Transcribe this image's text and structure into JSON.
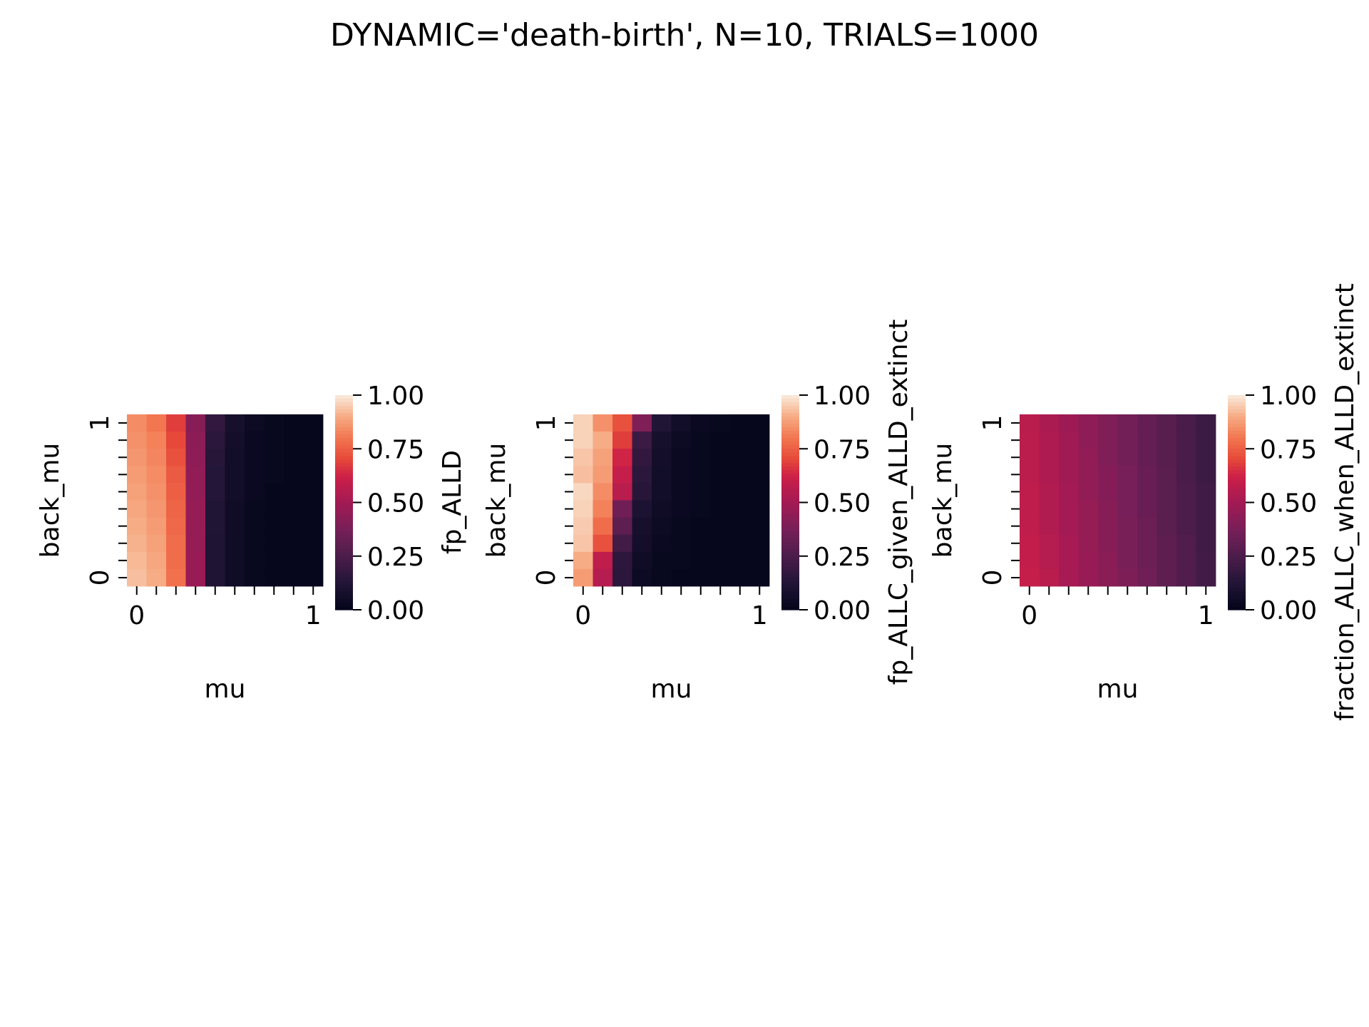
{
  "figure": {
    "title": "DYNAMIC='death-birth', N=10, TRIALS=1000"
  },
  "chart_data": [
    {
      "type": "heatmap",
      "xlabel": "mu",
      "ylabel": "back_mu",
      "x_ticklabels": [
        "0",
        "",
        "",
        "",
        "",
        "",
        "",
        "",
        "",
        "1"
      ],
      "y_ticklabels": [
        "1",
        "",
        "",
        "",
        "",
        "",
        "",
        "",
        "",
        "0"
      ],
      "colorbar_label": "fp_ALLD",
      "colorbar_ticks": [
        "0.00",
        "0.25",
        "0.50",
        "0.75",
        "1.00"
      ],
      "vmin": 0,
      "vmax": 1,
      "colormap": "rocket",
      "values": [
        [
          0.84,
          0.8,
          0.68,
          0.42,
          0.17,
          0.08,
          0.04,
          0.02,
          0.01,
          0.01
        ],
        [
          0.85,
          0.82,
          0.7,
          0.43,
          0.15,
          0.07,
          0.03,
          0.02,
          0.01,
          0.01
        ],
        [
          0.86,
          0.83,
          0.72,
          0.44,
          0.14,
          0.06,
          0.03,
          0.02,
          0.01,
          0.01
        ],
        [
          0.87,
          0.84,
          0.74,
          0.45,
          0.13,
          0.06,
          0.03,
          0.02,
          0.01,
          0.01
        ],
        [
          0.88,
          0.85,
          0.75,
          0.45,
          0.13,
          0.06,
          0.03,
          0.01,
          0.01,
          0.01
        ],
        [
          0.89,
          0.86,
          0.76,
          0.46,
          0.12,
          0.05,
          0.02,
          0.01,
          0.01,
          0.01
        ],
        [
          0.9,
          0.87,
          0.77,
          0.46,
          0.12,
          0.05,
          0.02,
          0.01,
          0.01,
          0.01
        ],
        [
          0.91,
          0.88,
          0.78,
          0.46,
          0.11,
          0.05,
          0.02,
          0.01,
          0.01,
          0.01
        ],
        [
          0.92,
          0.89,
          0.78,
          0.47,
          0.11,
          0.05,
          0.02,
          0.01,
          0.01,
          0.01
        ],
        [
          0.93,
          0.9,
          0.79,
          0.47,
          0.11,
          0.05,
          0.02,
          0.01,
          0.01,
          0.01
        ]
      ]
    },
    {
      "type": "heatmap",
      "xlabel": "mu",
      "ylabel": "back_mu",
      "x_ticklabels": [
        "0",
        "",
        "",
        "",
        "",
        "",
        "",
        "",
        "",
        "1"
      ],
      "y_ticklabels": [
        "1",
        "",
        "",
        "",
        "",
        "",
        "",
        "",
        "",
        "0"
      ],
      "colorbar_label": "fp_ALLC_given_ALLD_extinct",
      "colorbar_ticks": [
        "0.00",
        "0.25",
        "0.50",
        "0.75",
        "1.00"
      ],
      "vmin": 0,
      "vmax": 1,
      "colormap": "rocket",
      "values": [
        [
          0.96,
          0.85,
          0.72,
          0.4,
          0.12,
          0.06,
          0.03,
          0.02,
          0.01,
          0.01
        ],
        [
          0.96,
          0.9,
          0.68,
          0.2,
          0.08,
          0.04,
          0.02,
          0.01,
          0.01,
          0.01
        ],
        [
          0.94,
          0.88,
          0.63,
          0.17,
          0.07,
          0.03,
          0.02,
          0.01,
          0.01,
          0.01
        ],
        [
          0.93,
          0.87,
          0.6,
          0.15,
          0.06,
          0.03,
          0.02,
          0.01,
          0.01,
          0.01
        ],
        [
          0.97,
          0.84,
          0.56,
          0.14,
          0.06,
          0.03,
          0.02,
          0.01,
          0.01,
          0.01
        ],
        [
          0.96,
          0.82,
          0.35,
          0.1,
          0.05,
          0.03,
          0.02,
          0.01,
          0.01,
          0.01
        ],
        [
          0.95,
          0.78,
          0.3,
          0.08,
          0.04,
          0.02,
          0.01,
          0.01,
          0.01,
          0.01
        ],
        [
          0.94,
          0.72,
          0.22,
          0.07,
          0.03,
          0.02,
          0.01,
          0.01,
          0.01,
          0.01
        ],
        [
          0.9,
          0.58,
          0.16,
          0.05,
          0.02,
          0.02,
          0.01,
          0.01,
          0.01,
          0.01
        ],
        [
          0.87,
          0.55,
          0.15,
          0.04,
          0.02,
          0.01,
          0.01,
          0.01,
          0.01,
          0.01
        ]
      ]
    },
    {
      "type": "heatmap",
      "xlabel": "mu",
      "ylabel": "back_mu",
      "x_ticklabels": [
        "0",
        "",
        "",
        "",
        "",
        "",
        "",
        "",
        "",
        "1"
      ],
      "y_ticklabels": [
        "1",
        "",
        "",
        "",
        "",
        "",
        "",
        "",
        "",
        "0"
      ],
      "colorbar_label": "fraction_ALLC_when_ALLD_extinct",
      "colorbar_ticks": [
        "0.00",
        "0.25",
        "0.50",
        "0.75",
        "1.00"
      ],
      "vmin": 0,
      "vmax": 1,
      "colormap": "rocket",
      "values": [
        [
          0.56,
          0.52,
          0.48,
          0.44,
          0.4,
          0.36,
          0.32,
          0.28,
          0.24,
          0.2
        ],
        [
          0.57,
          0.53,
          0.49,
          0.44,
          0.4,
          0.36,
          0.32,
          0.28,
          0.24,
          0.2
        ],
        [
          0.57,
          0.53,
          0.49,
          0.45,
          0.4,
          0.36,
          0.32,
          0.28,
          0.24,
          0.2
        ],
        [
          0.57,
          0.53,
          0.49,
          0.45,
          0.41,
          0.37,
          0.33,
          0.29,
          0.24,
          0.2
        ],
        [
          0.58,
          0.54,
          0.5,
          0.45,
          0.41,
          0.37,
          0.33,
          0.29,
          0.25,
          0.21
        ],
        [
          0.58,
          0.54,
          0.5,
          0.46,
          0.42,
          0.37,
          0.33,
          0.29,
          0.25,
          0.21
        ],
        [
          0.58,
          0.54,
          0.5,
          0.46,
          0.42,
          0.38,
          0.34,
          0.29,
          0.25,
          0.21
        ],
        [
          0.59,
          0.55,
          0.51,
          0.46,
          0.42,
          0.38,
          0.34,
          0.3,
          0.26,
          0.21
        ],
        [
          0.59,
          0.55,
          0.51,
          0.47,
          0.43,
          0.38,
          0.34,
          0.3,
          0.26,
          0.22
        ],
        [
          0.6,
          0.56,
          0.51,
          0.47,
          0.43,
          0.39,
          0.35,
          0.3,
          0.26,
          0.22
        ]
      ]
    }
  ]
}
